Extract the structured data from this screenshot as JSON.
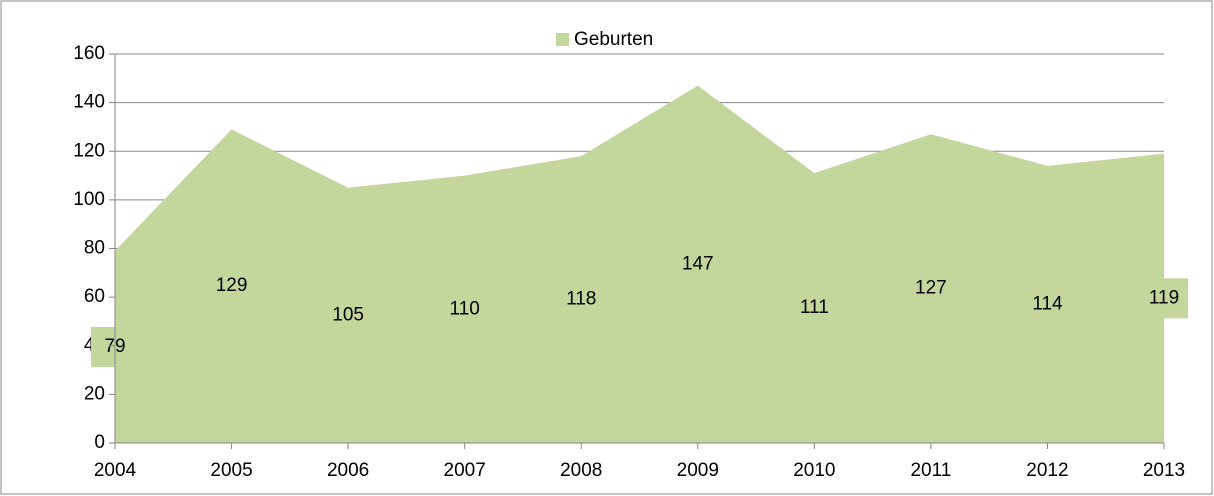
{
  "chart_data": {
    "type": "area",
    "legend_position": "top",
    "categories": [
      "2004",
      "2005",
      "2006",
      "2007",
      "2008",
      "2009",
      "2010",
      "2011",
      "2012",
      "2013"
    ],
    "series": [
      {
        "name": "Geburten",
        "color": "#c3d69b",
        "values": [
          79,
          129,
          105,
          110,
          118,
          147,
          111,
          127,
          114,
          119
        ]
      }
    ],
    "ylim": [
      0,
      160
    ],
    "yticks": [
      0,
      20,
      40,
      60,
      80,
      100,
      120,
      140,
      160
    ],
    "grid": true
  }
}
